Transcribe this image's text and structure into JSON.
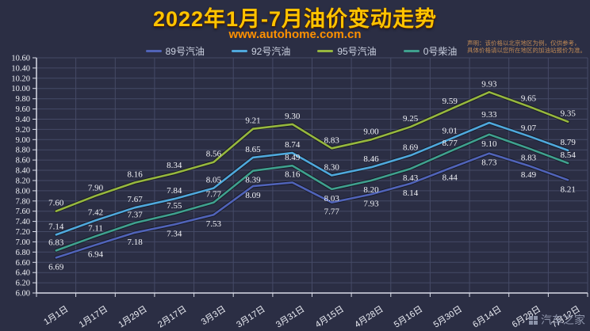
{
  "title": "2022年1月-7月油价变动走势",
  "subtitle": "www.autohome.com.cn",
  "disclaimer": {
    "line1": "声明：该价格以北京地区为例，仅供参考，",
    "line2": "具体价格请以您所在地区的加油站报价为准。"
  },
  "watermark": "汽车之家",
  "colors": {
    "background": "#2b2e44",
    "title": "#ffc400",
    "subtitle": "#ff9100",
    "grid": "#454a66",
    "axis": "#d9dce8",
    "data_label": "#f2f3f7"
  },
  "chart_data": {
    "type": "line",
    "title": "2022年1月-7月油价变动走势",
    "xlabel": "",
    "ylabel": "",
    "ylim": [
      6.0,
      10.6
    ],
    "ytick_step": 0.2,
    "grid": true,
    "legend_position": "top",
    "categories": [
      "1月1日",
      "1月17日",
      "1月29日",
      "2月17日",
      "3月3日",
      "3月17日",
      "3月31日",
      "4月15日",
      "4月28日",
      "5月16日",
      "5月30日",
      "6月14日",
      "6月28日",
      "7月12日"
    ],
    "series": [
      {
        "name": "89号汽油",
        "color": "#5063b8",
        "values": [
          6.69,
          6.94,
          7.18,
          7.34,
          7.53,
          8.09,
          8.16,
          7.77,
          7.93,
          8.14,
          8.44,
          8.73,
          8.49,
          8.21
        ]
      },
      {
        "name": "92号汽油",
        "color": "#4fa8dc",
        "values": [
          7.14,
          7.42,
          7.67,
          7.84,
          8.05,
          8.65,
          8.74,
          8.3,
          8.46,
          8.69,
          9.01,
          9.33,
          9.07,
          8.79
        ]
      },
      {
        "name": "95号汽油",
        "color": "#96b73e",
        "values": [
          7.6,
          7.9,
          8.16,
          8.34,
          8.56,
          9.21,
          9.3,
          8.83,
          9.0,
          9.25,
          9.59,
          9.93,
          9.65,
          9.35
        ]
      },
      {
        "name": "0号柴油",
        "color": "#3fa08e",
        "values": [
          6.83,
          7.11,
          7.37,
          7.55,
          7.77,
          8.39,
          8.49,
          8.03,
          8.2,
          8.43,
          8.77,
          9.1,
          8.83,
          8.54
        ]
      }
    ]
  }
}
